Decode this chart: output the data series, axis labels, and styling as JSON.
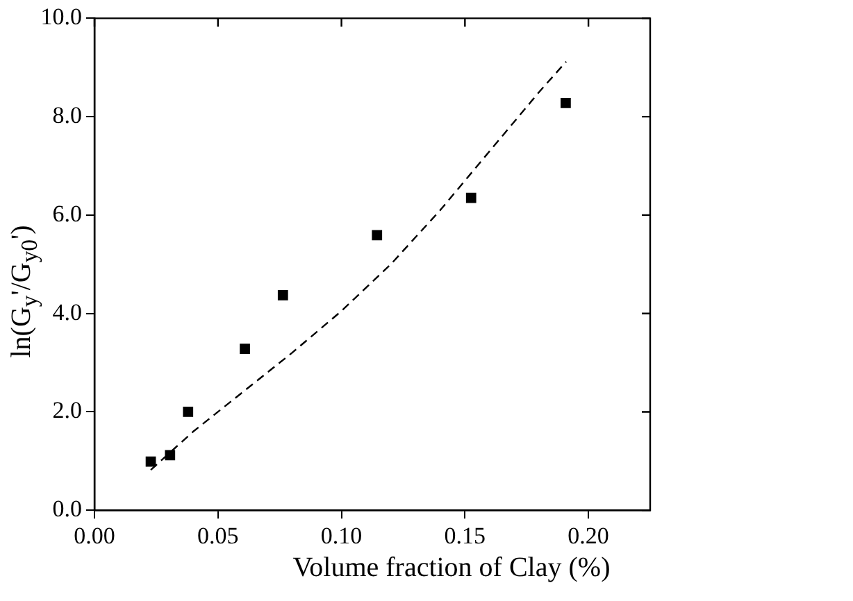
{
  "chart_data": {
    "type": "scatter",
    "xlabel": "Volume fraction of Clay (%)",
    "ylabel": "ln(G$_{y}$'/G$_{y0}$')",
    "xlim": [
      0,
      0.225
    ],
    "ylim": [
      0,
      10
    ],
    "xticks": [
      {
        "value": 0,
        "label": "0.00"
      },
      0.05,
      {
        "value": 0.1,
        "label": "0.10"
      },
      0.15,
      {
        "value": 0.2,
        "label": "0.20"
      }
    ],
    "yticks": [
      {
        "value": 0,
        "label": "0.0"
      },
      {
        "value": 2,
        "label": "2.0"
      },
      {
        "value": 4,
        "label": "4.0"
      },
      {
        "value": 6,
        "label": "6.0"
      },
      {
        "value": 8,
        "label": "8.0"
      },
      {
        "value": 10,
        "label": "10.0"
      }
    ],
    "grid": false,
    "legend": false,
    "series": [
      {
        "type": "scatter",
        "color": "#000000",
        "marker": "square",
        "x": [
          0.0228,
          0.0306,
          0.0379,
          0.0609,
          0.0763,
          0.1144,
          0.1525,
          0.1908
        ],
        "values": [
          0.99,
          1.12,
          2.0,
          3.28,
          4.37,
          5.59,
          6.35,
          8.28
        ]
      },
      {
        "type": "line",
        "color": "#000000",
        "line_style": "dashed",
        "marker": "none",
        "x": [
          0.0228,
          0.04,
          0.06,
          0.08,
          0.1,
          0.12,
          0.14,
          0.16,
          0.18,
          0.191
        ],
        "values": [
          0.82,
          1.6,
          2.4,
          3.2,
          4.05,
          5.0,
          6.1,
          7.3,
          8.5,
          9.12
        ]
      }
    ]
  }
}
